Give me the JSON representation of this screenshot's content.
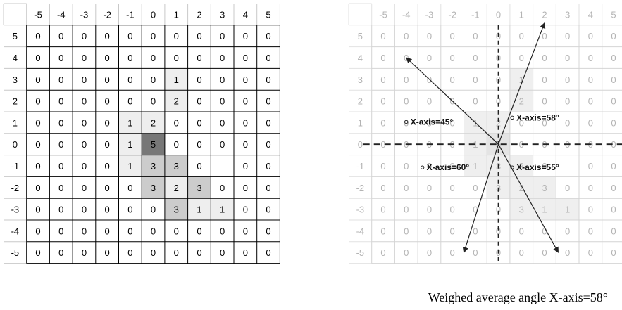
{
  "axis_labels": [
    "-5",
    "-4",
    "-3",
    "-2",
    "-1",
    "0",
    "1",
    "2",
    "3",
    "4",
    "5"
  ],
  "row_labels": [
    "5",
    "4",
    "3",
    "2",
    "1",
    "0",
    "-1",
    "-2",
    "-3",
    "-4",
    "-5"
  ],
  "grid_values": [
    [
      "0",
      "0",
      "0",
      "0",
      "0",
      "0",
      "0",
      "0",
      "0",
      "0",
      "0"
    ],
    [
      "0",
      "0",
      "0",
      "0",
      "0",
      "0",
      "0",
      "0",
      "0",
      "0",
      "0"
    ],
    [
      "0",
      "0",
      "0",
      "0",
      "0",
      "0",
      "1",
      "0",
      "0",
      "0",
      "0"
    ],
    [
      "0",
      "0",
      "0",
      "0",
      "0",
      "0",
      "2",
      "0",
      "0",
      "0",
      "0"
    ],
    [
      "0",
      "0",
      "0",
      "0",
      "1",
      "2",
      "0",
      "0",
      "0",
      "0",
      "0"
    ],
    [
      "0",
      "0",
      "0",
      "0",
      "1",
      "5",
      "0",
      "0",
      "0",
      "0",
      "0"
    ],
    [
      "0",
      "0",
      "0",
      "0",
      "1",
      "3",
      "3",
      "0",
      "",
      "0",
      "0"
    ],
    [
      "0",
      "0",
      "0",
      "0",
      "0",
      "3",
      "2",
      "3",
      "0",
      "0",
      "0"
    ],
    [
      "0",
      "0",
      "0",
      "0",
      "0",
      "0",
      "3",
      "1",
      "1",
      "0",
      "0"
    ],
    [
      "0",
      "0",
      "0",
      "0",
      "0",
      "0",
      "0",
      "0",
      "0",
      "0",
      "0"
    ],
    [
      "0",
      "0",
      "0",
      "0",
      "0",
      "0",
      "0",
      "0",
      "0",
      "0",
      "0"
    ]
  ],
  "shades": [
    [
      0,
      0,
      0,
      0,
      0,
      0,
      0,
      0,
      0,
      0,
      0
    ],
    [
      0,
      0,
      0,
      0,
      0,
      0,
      0,
      0,
      0,
      0,
      0
    ],
    [
      0,
      0,
      0,
      0,
      0,
      0,
      1,
      0,
      0,
      0,
      0
    ],
    [
      0,
      0,
      0,
      0,
      0,
      0,
      1,
      0,
      0,
      0,
      0
    ],
    [
      0,
      0,
      0,
      0,
      1,
      1,
      0,
      0,
      0,
      0,
      0
    ],
    [
      0,
      0,
      0,
      0,
      1,
      3,
      0,
      0,
      0,
      0,
      0
    ],
    [
      0,
      0,
      0,
      0,
      1,
      2,
      2,
      0,
      0,
      0,
      0
    ],
    [
      0,
      0,
      0,
      0,
      0,
      2,
      1,
      2,
      0,
      0,
      0
    ],
    [
      0,
      0,
      0,
      0,
      0,
      0,
      2,
      1,
      1,
      0,
      0
    ],
    [
      0,
      0,
      0,
      0,
      0,
      0,
      0,
      0,
      0,
      0,
      0
    ],
    [
      0,
      0,
      0,
      0,
      0,
      0,
      0,
      0,
      0,
      0,
      0
    ]
  ],
  "shade_colors": [
    "#ffffff",
    "#eeeeee",
    "#cccccc",
    "#777777"
  ],
  "angle_labels": [
    "X-axis=45°",
    "X-axis=58°",
    "X-axis=60°",
    "X-axis=55°"
  ],
  "caption": "Weighed average angle X-axis=58°"
}
